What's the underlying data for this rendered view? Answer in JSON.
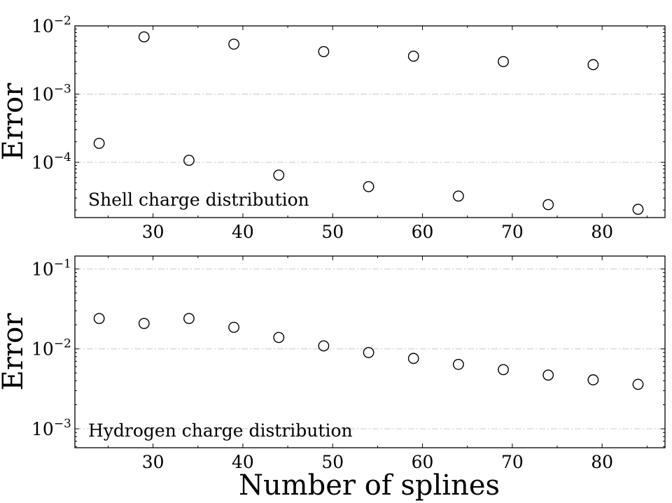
{
  "chart_data": [
    {
      "type": "scatter",
      "panel": "top",
      "title": "",
      "annotation": "Shell charge distribution",
      "ylabel": "Error",
      "xlabel": "",
      "yscale": "log",
      "xlim": [
        21.3,
        87.0
      ],
      "ylim": [
        1.55e-05,
        0.01
      ],
      "xticks": [
        30,
        40,
        50,
        60,
        70,
        80
      ],
      "yticks": [
        {
          "value": 0.01,
          "base": "10",
          "exp": "−2"
        },
        {
          "value": 0.001,
          "base": "10",
          "exp": "−3"
        },
        {
          "value": 0.0001,
          "base": "10",
          "exp": "−4"
        }
      ],
      "grid": "y-major, dash-dot, light gray",
      "marker": "hollow circle",
      "points": [
        {
          "x": 24,
          "y": 0.00019
        },
        {
          "x": 29,
          "y": 0.0069
        },
        {
          "x": 34,
          "y": 0.000107
        },
        {
          "x": 39,
          "y": 0.0054
        },
        {
          "x": 44,
          "y": 6.5e-05
        },
        {
          "x": 49,
          "y": 0.0042
        },
        {
          "x": 54,
          "y": 4.4e-05
        },
        {
          "x": 59,
          "y": 0.0036
        },
        {
          "x": 64,
          "y": 3.2e-05
        },
        {
          "x": 69,
          "y": 0.003
        },
        {
          "x": 74,
          "y": 2.4e-05
        },
        {
          "x": 79,
          "y": 0.0027
        },
        {
          "x": 84,
          "y": 2.05e-05
        }
      ]
    },
    {
      "type": "scatter",
      "panel": "bottom",
      "title": "",
      "annotation": "Hydrogen charge distribution",
      "ylabel": "Error",
      "xlabel": "Number of splines",
      "yscale": "log",
      "xlim": [
        21.3,
        87.0
      ],
      "ylim": [
        0.00058,
        0.145
      ],
      "xticks": [
        30,
        40,
        50,
        60,
        70,
        80
      ],
      "yticks": [
        {
          "value": 0.1,
          "base": "10",
          "exp": "−1"
        },
        {
          "value": 0.01,
          "base": "10",
          "exp": "−2"
        },
        {
          "value": 0.001,
          "base": "10",
          "exp": "−3"
        }
      ],
      "grid": "y-major, dash-dot, light gray",
      "marker": "hollow circle",
      "points": [
        {
          "x": 24,
          "y": 0.024
        },
        {
          "x": 29,
          "y": 0.0208
        },
        {
          "x": 34,
          "y": 0.024
        },
        {
          "x": 39,
          "y": 0.0186
        },
        {
          "x": 44,
          "y": 0.0139
        },
        {
          "x": 49,
          "y": 0.0109
        },
        {
          "x": 54,
          "y": 0.009
        },
        {
          "x": 59,
          "y": 0.0076
        },
        {
          "x": 64,
          "y": 0.0064
        },
        {
          "x": 69,
          "y": 0.0055
        },
        {
          "x": 74,
          "y": 0.0047
        },
        {
          "x": 79,
          "y": 0.0041
        },
        {
          "x": 84,
          "y": 0.0036
        }
      ]
    }
  ]
}
